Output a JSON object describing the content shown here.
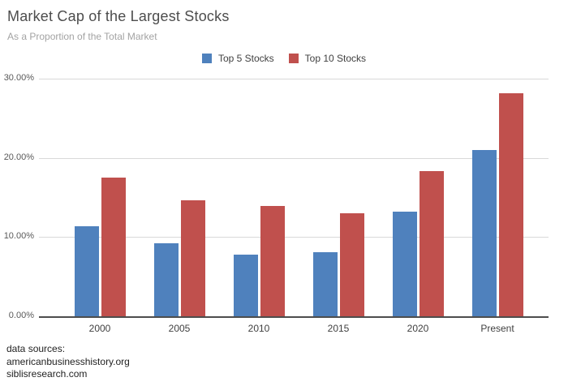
{
  "chart_data": {
    "type": "bar",
    "title": "Market Cap of the Largest Stocks",
    "subtitle": "As a Proportion of the Total Market",
    "categories": [
      "2000",
      "2005",
      "2010",
      "2015",
      "2020",
      "Present"
    ],
    "series": [
      {
        "name": "Top 5 Stocks",
        "color": "#4f81bd",
        "values": [
          11.4,
          9.2,
          7.8,
          8.1,
          13.2,
          21.0
        ]
      },
      {
        "name": "Top 10 Stocks",
        "color": "#c0504d",
        "values": [
          17.5,
          14.6,
          13.9,
          13.0,
          18.3,
          28.2
        ]
      }
    ],
    "xlabel": "",
    "ylabel": "",
    "ylim": [
      0,
      30
    ],
    "yticks": [
      {
        "value": 0,
        "label": "0.00%"
      },
      {
        "value": 10,
        "label": "10.00%"
      },
      {
        "value": 20,
        "label": "20.00%"
      },
      {
        "value": 30,
        "label": "30.00%"
      }
    ],
    "grid": "horizontal",
    "legend_position": "top-center"
  },
  "footer": {
    "lines": [
      "data sources:",
      "americanbusinesshistory.org",
      "siblisresearch.com"
    ]
  },
  "colors": {
    "top5_blue": "#4f81bd",
    "top10_red": "#c0504d",
    "gridline": "#d9d9d9",
    "axis_line": "#4d4d4d",
    "title_text": "#4d4d4d",
    "subtitle_text": "#a3a3a3"
  }
}
